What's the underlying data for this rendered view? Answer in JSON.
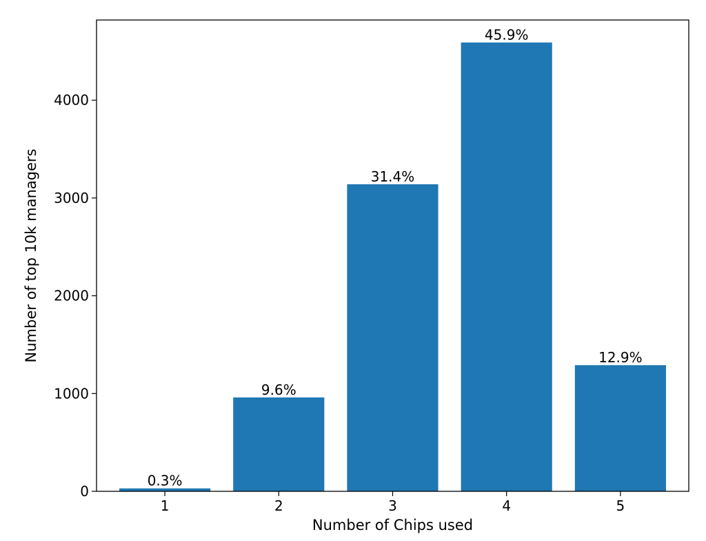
{
  "chart_data": {
    "type": "bar",
    "categories": [
      "1",
      "2",
      "3",
      "4",
      "5"
    ],
    "values": [
      30,
      960,
      3140,
      4590,
      1290
    ],
    "data_labels": [
      "0.3%",
      "9.6%",
      "31.4%",
      "45.9%",
      "12.9%"
    ],
    "title": "",
    "xlabel": "Number of Chips used",
    "ylabel": "Number of top 10k managers",
    "yticks": [
      0,
      1000,
      2000,
      3000,
      4000
    ],
    "ylim": [
      0,
      4820
    ],
    "grid": false,
    "legend": "none",
    "bar_color": "#1f77b4"
  }
}
